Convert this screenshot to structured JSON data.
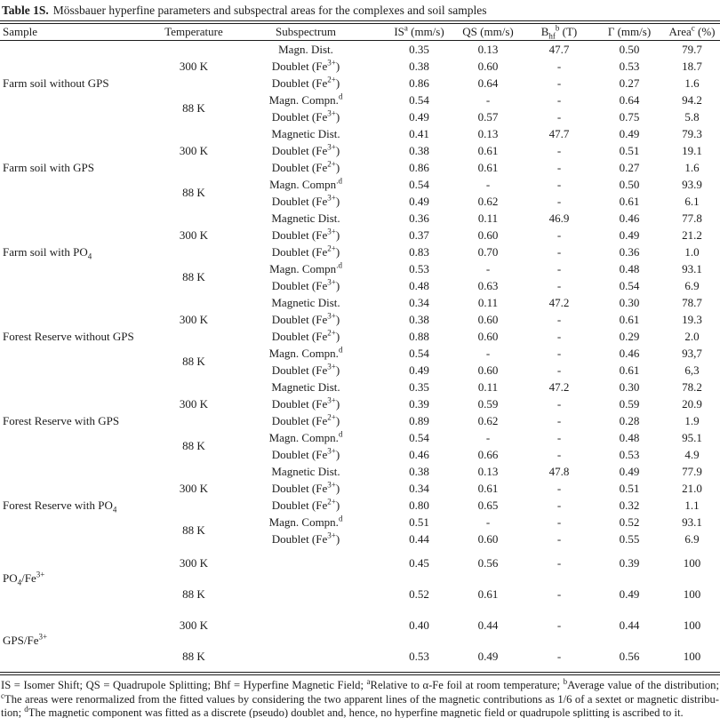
{
  "title": {
    "label": "Table 1S.",
    "text": "Mössbauer hyperfine parameters and subspectral areas for the complexes and soil samples"
  },
  "table": {
    "columns": [
      "Sample",
      "Temperature",
      "Subspectrum",
      "IS<sup>a</sup> (mm/s)",
      "QS  (mm/s)",
      "B<sub>hf</sub><sup>b</sup> (T)",
      "Γ (mm/s)",
      "Area<sup>c</sup> (%)"
    ],
    "groups": [
      {
        "sample": "Farm soil without GPS",
        "temps": [
          {
            "label": "300 K",
            "span": 3
          },
          {
            "label": "88 K",
            "span": 2
          }
        ],
        "rows": [
          {
            "sub": "Magn. Dist.",
            "is": "0.35",
            "qs": "0.13",
            "bhf": "47.7",
            "gamma": "0.50",
            "area": "79.7"
          },
          {
            "sub": "Doublet (Fe<sup>3+</sup>)",
            "is": "0.38",
            "qs": "0.60",
            "bhf": "-",
            "gamma": "0.53",
            "area": "18.7"
          },
          {
            "sub": "Doublet (Fe<sup>2+</sup>)",
            "is": "0.86",
            "qs": "0.64",
            "bhf": "-",
            "gamma": "0.27",
            "area": "1.6"
          },
          {
            "sub": "Magn. Compn.<sup>d</sup>",
            "is": "0.54",
            "qs": "-",
            "bhf": "-",
            "gamma": "0.64",
            "area": "94.2"
          },
          {
            "sub": "Doublet (Fe<sup>3+</sup>)",
            "is": "0.49",
            "qs": "0.57",
            "bhf": "-",
            "gamma": "0.75",
            "area": "5.8"
          }
        ]
      },
      {
        "sample": "Farm soil with GPS",
        "temps": [
          {
            "label": "300 K",
            "span": 3
          },
          {
            "label": "88 K",
            "span": 2
          }
        ],
        "rows": [
          {
            "sub": "Magnetic Dist.",
            "is": "0.41",
            "qs": "0.13",
            "bhf": "47.7",
            "gamma": "0.49",
            "area": "79.3"
          },
          {
            "sub": "Doublet (Fe<sup>3+</sup>)",
            "is": "0.38",
            "qs": "0.61",
            "bhf": "-",
            "gamma": "0.51",
            "area": "19.1"
          },
          {
            "sub": "Doublet (Fe<sup>2+</sup>)",
            "is": "0.86",
            "qs": "0.61",
            "bhf": "-",
            "gamma": "0.27",
            "area": "1.6"
          },
          {
            "sub": "Magn. Compn<sup>.d</sup>",
            "is": "0.54",
            "qs": "-",
            "bhf": "-",
            "gamma": "0.50",
            "area": "93.9"
          },
          {
            "sub": "Doublet (Fe<sup>3+</sup>)",
            "is": "0.49",
            "qs": "0.62",
            "bhf": "-",
            "gamma": "0.61",
            "area": "6.1"
          }
        ]
      },
      {
        "sample": "Farm soil with PO<sub>4</sub>",
        "temps": [
          {
            "label": "300 K",
            "span": 3
          },
          {
            "label": "88 K",
            "span": 2
          }
        ],
        "rows": [
          {
            "sub": "Magnetic Dist.",
            "is": "0.36",
            "qs": "0.11",
            "bhf": "46.9",
            "gamma": "0.46",
            "area": "77.8"
          },
          {
            "sub": "Doublet (Fe<sup>3+</sup>)",
            "is": "0.37",
            "qs": "0.60",
            "bhf": "-",
            "gamma": "0.49",
            "area": "21.2"
          },
          {
            "sub": "Doublet (Fe<sup>2+</sup>)",
            "is": "0.83",
            "qs": "0.70",
            "bhf": "-",
            "gamma": "0.36",
            "area": "1.0"
          },
          {
            "sub": "Magn. Compn<sup>.d</sup>",
            "is": "0.53",
            "qs": "-",
            "bhf": "-",
            "gamma": "0.48",
            "area": "93.1"
          },
          {
            "sub": "Doublet (Fe<sup>3+</sup>)",
            "is": "0.48",
            "qs": "0.63",
            "bhf": "-",
            "gamma": "0.54",
            "area": "6.9"
          }
        ]
      },
      {
        "sample": "Forest Reserve without GPS",
        "temps": [
          {
            "label": "300 K",
            "span": 3
          },
          {
            "label": "88 K",
            "span": 2
          }
        ],
        "rows": [
          {
            "sub": "Magnetic Dist.",
            "is": "0.34",
            "qs": "0.11",
            "bhf": "47.2",
            "gamma": "0.30",
            "area": "78.7"
          },
          {
            "sub": "Doublet (Fe<sup>3+</sup>)",
            "is": "0.38",
            "qs": "0.60",
            "bhf": "-",
            "gamma": "0.61",
            "area": "19.3"
          },
          {
            "sub": "Doublet (Fe<sup>2+</sup>)",
            "is": "0.88",
            "qs": "0.60",
            "bhf": "-",
            "gamma": "0.29",
            "area": "2.0"
          },
          {
            "sub": "Magn. Compn.<sup>d</sup>",
            "is": "0.54",
            "qs": "-",
            "bhf": "-",
            "gamma": "0.46",
            "area": "93,7"
          },
          {
            "sub": "Doublet (Fe<sup>3+</sup>)",
            "is": "0.49",
            "qs": "0.60",
            "bhf": "-",
            "gamma": "0.61",
            "area": "6,3"
          }
        ]
      },
      {
        "sample": "Forest Reserve with GPS",
        "temps": [
          {
            "label": "300 K",
            "span": 3
          },
          {
            "label": "88 K",
            "span": 2
          }
        ],
        "rows": [
          {
            "sub": "Magnetic Dist.",
            "is": "0.35",
            "qs": "0.11",
            "bhf": "47.2",
            "gamma": "0.30",
            "area": "78.2"
          },
          {
            "sub": "Doublet (Fe<sup>3+</sup>)",
            "is": "0.39",
            "qs": "0.59",
            "bhf": "-",
            "gamma": "0.59",
            "area": "20.9"
          },
          {
            "sub": "Doublet (Fe<sup>2+</sup>)",
            "is": "0.89",
            "qs": "0.62",
            "bhf": "-",
            "gamma": "0.28",
            "area": "1.9"
          },
          {
            "sub": "Magn. Compn.<sup>d</sup>",
            "is": "0.54",
            "qs": "-",
            "bhf": "-",
            "gamma": "0.48",
            "area": "95.1"
          },
          {
            "sub": "Doublet (Fe<sup>3+</sup>)",
            "is": "0.46",
            "qs": "0.66",
            "bhf": "-",
            "gamma": "0.53",
            "area": "4.9"
          }
        ]
      },
      {
        "sample": "Forest Reserve with PO<sub>4</sub>",
        "temps": [
          {
            "label": "300 K",
            "span": 3
          },
          {
            "label": "88 K",
            "span": 2
          }
        ],
        "rows": [
          {
            "sub": "Magnetic Dist.",
            "is": "0.38",
            "qs": "0.13",
            "bhf": "47.8",
            "gamma": "0.49",
            "area": "77.9"
          },
          {
            "sub": "Doublet (Fe<sup>3+</sup>)",
            "is": "0.34",
            "qs": "0.61",
            "bhf": "-",
            "gamma": "0.51",
            "area": "21.0"
          },
          {
            "sub": "Doublet (Fe<sup>2+</sup>)",
            "is": "0.80",
            "qs": "0.65",
            "bhf": "-",
            "gamma": "0.32",
            "area": "1.1"
          },
          {
            "sub": "Magn. Compn.<sup>d</sup>",
            "is": "0.51",
            "qs": "-",
            "bhf": "-",
            "gamma": "0.52",
            "area": "93.1"
          },
          {
            "sub": "Doublet (Fe<sup>3+</sup>)",
            "is": "0.44",
            "qs": "0.60",
            "bhf": "-",
            "gamma": "0.55",
            "area": "6.9"
          }
        ]
      },
      {
        "sample": "PO<sub>4</sub>/Fe<sup>3+</sup>",
        "tall": true,
        "temps": [
          {
            "label": "300 K",
            "span": 1
          },
          {
            "label": "88 K",
            "span": 1
          }
        ],
        "rows": [
          {
            "sub": "",
            "is": "0.45",
            "qs": "0.56",
            "bhf": "-",
            "gamma": "0.39",
            "area": "100"
          },
          {
            "sub": "",
            "is": "0.52",
            "qs": "0.61",
            "bhf": "-",
            "gamma": "0.49",
            "area": "100"
          }
        ]
      },
      {
        "sample": "GPS/Fe<sup>3+</sup>",
        "tall": true,
        "temps": [
          {
            "label": "300 K",
            "span": 1
          },
          {
            "label": "88 K",
            "span": 1
          }
        ],
        "rows": [
          {
            "sub": "",
            "is": "0.40",
            "qs": "0.44",
            "bhf": "-",
            "gamma": "0.44",
            "area": "100"
          },
          {
            "sub": "",
            "is": "0.53",
            "qs": "0.49",
            "bhf": "-",
            "gamma": "0.56",
            "area": "100"
          }
        ]
      }
    ]
  },
  "footnotes": {
    "line1": "IS = Isomer Shift; QS = Quadrupole Splitting; Bhf = Hyperfine Magnetic Field; <sup>a</sup>Relative to α-Fe foil at room temperature; <sup>b</sup>Average value of the distribution;",
    "line2": "<sup>c</sup>The areas were renormalized from the fitted values by considering the two apparent lines of the magnetic contributions as 1/6 of a sextet or magnetic distribu-",
    "line3": "tion; <sup>d</sup>The magnetic component was fitted as a discrete (pseudo) doublet and, hence, no hyperfine magnetic field or quadrupole splitting is ascribed to it."
  },
  "colors": {
    "text": "#1c1c1c",
    "rule": "#1c1c1c",
    "background": "#ffffff"
  }
}
